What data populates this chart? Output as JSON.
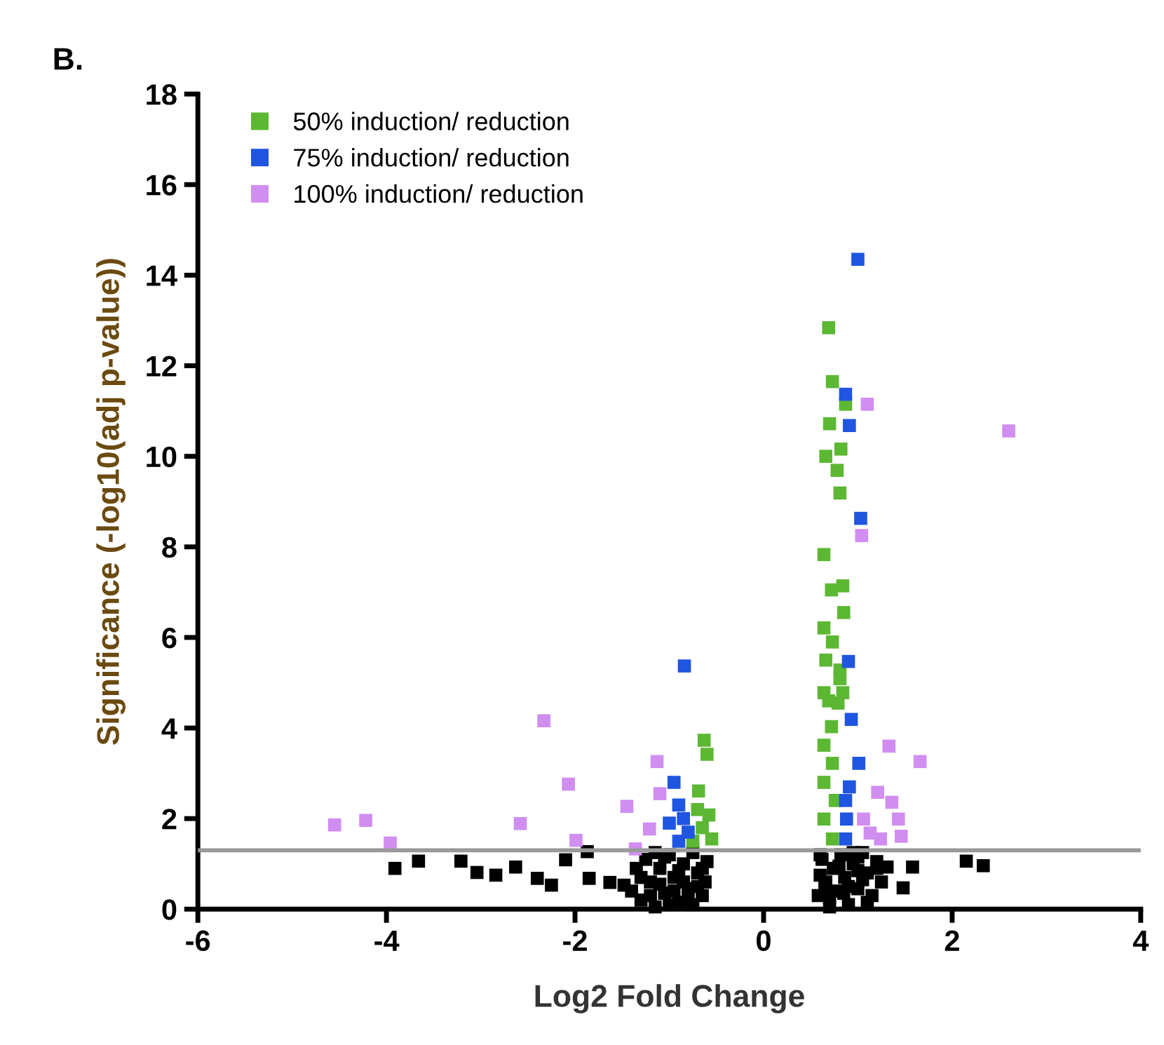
{
  "chart_data": {
    "type": "scatter",
    "title": "B.",
    "xlabel": "Log2 Fold Change",
    "ylabel": "Significance (-log10(adj p-value))",
    "xlim": [
      -6,
      4
    ],
    "xticks": [
      -6,
      -4,
      -2,
      0,
      2,
      4
    ],
    "ylim": [
      0,
      18
    ],
    "yticks": [
      0,
      2,
      4,
      6,
      8,
      10,
      12,
      14,
      16,
      18
    ],
    "grid": false,
    "legend": "top left",
    "marker": "square",
    "ref_lines": [
      {
        "axis": "y",
        "value": 1.3,
        "color": "#999999"
      }
    ],
    "series": [
      {
        "color": "#000000",
        "x": [
          -3.91,
          -3.66,
          -3.21,
          -3.04,
          -2.84,
          -2.63,
          -2.4,
          -2.25,
          -2.1,
          -1.87,
          -1.85,
          -1.63,
          -1.48,
          -1.4,
          -1.35,
          -1.3,
          -1.25,
          -1.2,
          -1.15,
          -1.1,
          -1.05,
          -1.0,
          -0.95,
          -0.9,
          -0.85,
          -0.8,
          -0.75,
          -0.7,
          -0.65,
          -0.6,
          -1.3,
          -1.2,
          -1.1,
          -1.0,
          -0.9,
          -0.8,
          -0.7,
          -0.62,
          -1.15,
          -0.95,
          -0.75,
          -1.05,
          -0.85,
          -0.65,
          0.58,
          0.62,
          0.66,
          0.7,
          0.74,
          0.78,
          0.82,
          0.86,
          0.9,
          0.95,
          1.0,
          1.05,
          1.1,
          1.15,
          1.2,
          1.25,
          0.6,
          0.7,
          0.8,
          0.9,
          1.0,
          1.1,
          1.2,
          0.65,
          0.85,
          0.95,
          1.05,
          0.6,
          1.0,
          1.31,
          1.58,
          1.48,
          2.15,
          2.33
        ],
        "values": [
          0.9,
          1.06,
          1.06,
          0.81,
          0.75,
          0.93,
          0.68,
          0.53,
          1.09,
          1.27,
          0.68,
          0.59,
          0.53,
          0.4,
          0.9,
          0.2,
          1.1,
          0.6,
          0.05,
          0.9,
          0.35,
          1.2,
          0.7,
          0.15,
          1.0,
          0.45,
          1.25,
          0.8,
          0.3,
          1.05,
          0.7,
          0.3,
          0.55,
          0.1,
          0.85,
          0.2,
          0.5,
          0.6,
          1.25,
          0.4,
          0.1,
          1.15,
          0.6,
          0.9,
          0.3,
          1.1,
          0.6,
          0.05,
          0.9,
          0.4,
          1.2,
          0.7,
          0.1,
          1.0,
          0.45,
          1.25,
          0.8,
          0.3,
          1.05,
          0.6,
          0.75,
          0.25,
          0.95,
          0.5,
          1.15,
          0.15,
          0.9,
          0.5,
          0.35,
          1.25,
          0.65,
          1.2,
          0.85,
          0.93,
          0.93,
          0.47,
          1.06,
          0.96
        ]
      },
      {
        "name": "50% induction/ reduction",
        "color": "#5cb832",
        "x": [
          -0.63,
          -0.6,
          -0.69,
          -0.58,
          -0.55,
          -0.7,
          -0.65,
          -0.75,
          0.69,
          0.73,
          0.87,
          0.7,
          0.82,
          0.66,
          0.78,
          0.81,
          0.64,
          0.72,
          0.84,
          0.85,
          0.64,
          0.73,
          0.66,
          0.81,
          0.64,
          0.79,
          0.72,
          0.64,
          0.73,
          0.64,
          0.76,
          0.64,
          0.73,
          0.81,
          0.84,
          0.69
        ],
        "values": [
          3.73,
          3.42,
          2.61,
          2.08,
          1.55,
          2.2,
          1.8,
          1.5,
          12.84,
          11.65,
          11.15,
          10.72,
          10.16,
          10.0,
          9.69,
          9.19,
          7.83,
          7.05,
          7.14,
          6.55,
          6.21,
          5.9,
          5.5,
          5.09,
          4.78,
          4.55,
          4.03,
          3.62,
          3.22,
          2.8,
          2.4,
          1.99,
          1.55,
          5.28,
          4.78,
          4.6
        ]
      },
      {
        "name": "75% induction/ reduction",
        "color": "#1f55e0",
        "x": [
          -0.84,
          -0.95,
          -0.9,
          -0.85,
          -0.8,
          -0.9,
          -1.0,
          1.0,
          0.87,
          0.91,
          1.03,
          0.9,
          0.93,
          1.01,
          0.91,
          0.87,
          0.88,
          0.87
        ],
        "values": [
          5.37,
          2.8,
          2.3,
          2.0,
          1.7,
          1.5,
          1.9,
          14.35,
          11.37,
          10.68,
          8.63,
          5.47,
          4.19,
          3.22,
          2.7,
          2.4,
          1.99,
          1.55
        ]
      },
      {
        "name": "100% induction/ reduction",
        "color": "#d08ef0",
        "x": [
          -4.55,
          -4.22,
          -3.96,
          -2.58,
          -2.33,
          -2.07,
          -1.99,
          -1.45,
          -1.13,
          -1.1,
          -1.21,
          -1.36,
          1.1,
          2.6,
          1.04,
          1.33,
          1.66,
          1.21,
          1.36,
          1.43,
          1.06,
          1.13,
          1.46,
          1.24
        ],
        "values": [
          1.86,
          1.96,
          1.46,
          1.89,
          4.16,
          2.76,
          1.52,
          2.27,
          3.26,
          2.55,
          1.77,
          1.33,
          11.15,
          10.56,
          8.25,
          3.6,
          3.26,
          2.58,
          2.36,
          1.99,
          1.99,
          1.68,
          1.61,
          1.55
        ]
      }
    ]
  }
}
